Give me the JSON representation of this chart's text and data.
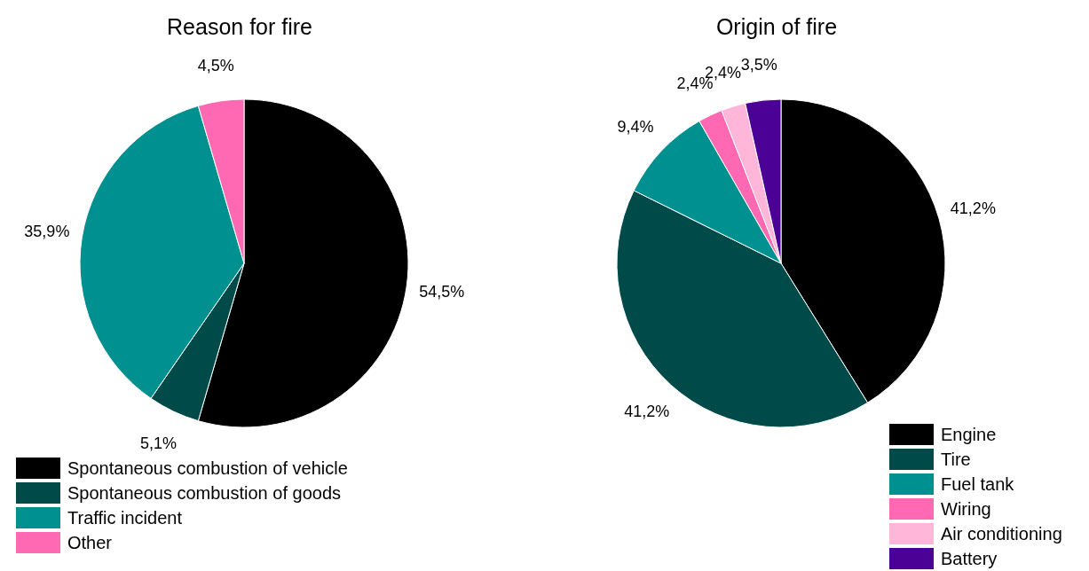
{
  "chart_data": [
    {
      "type": "pie",
      "title": "Reason for fire",
      "categories": [
        "Spontaneous combustion of vehicle",
        "Spontaneous combustion of goods",
        "Traffic incident",
        "Other"
      ],
      "values": [
        54.5,
        5.1,
        35.9,
        4.5
      ],
      "value_labels": [
        "54,5%",
        "5,1%",
        "35,9%",
        "4,5%"
      ],
      "colors": [
        "#000000",
        "#004a4a",
        "#009090",
        "#ff69b4"
      ],
      "legend": "bottom left"
    },
    {
      "type": "pie",
      "title": "Origin of fire",
      "categories": [
        "Engine",
        "Tire",
        "Fuel tank",
        "Wiring",
        "Air conditioning",
        "Battery"
      ],
      "values": [
        41.2,
        41.2,
        9.4,
        2.4,
        2.4,
        3.5
      ],
      "value_labels": [
        "41,2%",
        "41,2%",
        "9,4%",
        "2,4%",
        "2,4%",
        "3,5%"
      ],
      "colors": [
        "#000000",
        "#004a4a",
        "#009090",
        "#ff69b4",
        "#ffb6d9",
        "#4b0096"
      ],
      "legend": "bottom right"
    }
  ]
}
